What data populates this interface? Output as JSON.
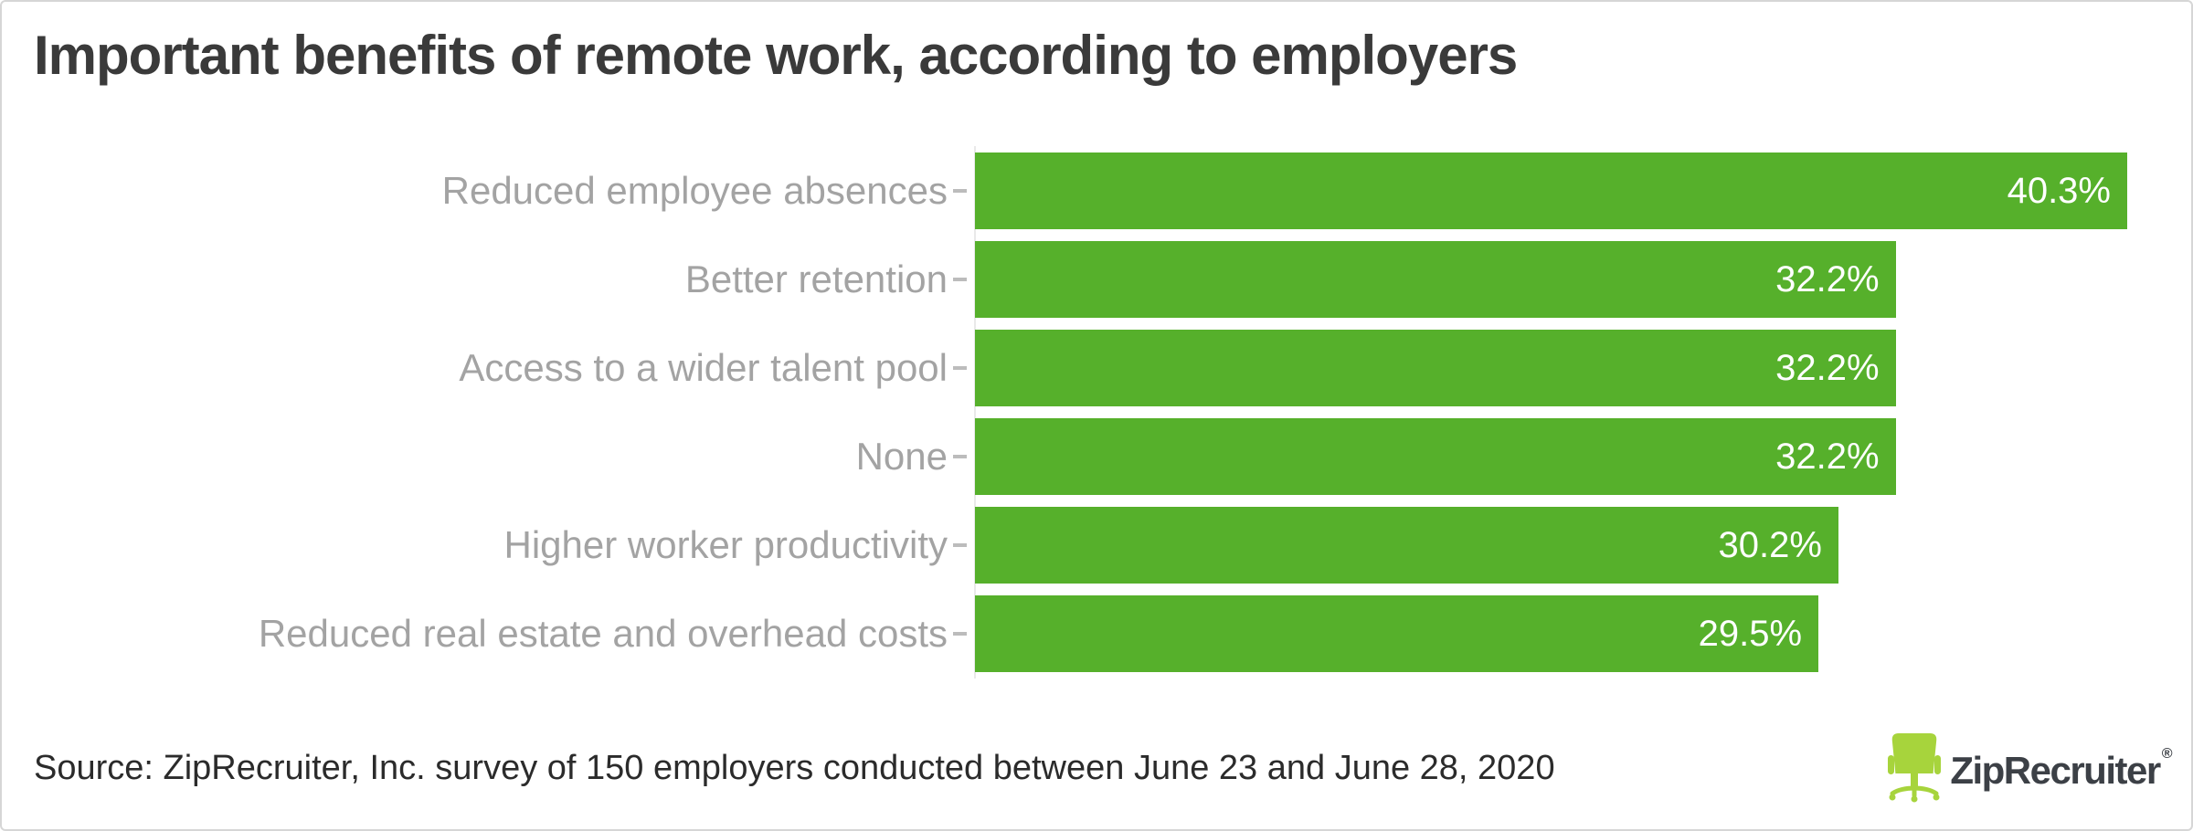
{
  "title": "Important benefits of remote work, according to employers",
  "chart_data": {
    "type": "bar",
    "orientation": "horizontal",
    "title": "Important benefits of remote work, according to employers",
    "categories": [
      "Reduced employee absences",
      "Better retention",
      "Access to a wider talent pool",
      "None",
      "Higher worker productivity",
      "Reduced real estate and overhead costs"
    ],
    "values": [
      40.3,
      32.2,
      32.2,
      32.2,
      30.2,
      29.5
    ],
    "value_labels": [
      "40.3%",
      "32.2%",
      "32.2%",
      "32.2%",
      "30.2%",
      "29.5%"
    ],
    "xlabel": "",
    "ylabel": "",
    "xmax": 40.3,
    "grid": false,
    "legend": false,
    "value_label_position": "inside-end",
    "bar_color": "#56b02b",
    "category_label_color": "#a3a3a3",
    "value_label_color": "#ffffff",
    "axis_line_color": "#e9e9e9",
    "tick_color": "#bcbcbc"
  },
  "footer": {
    "source_text": "Source: ZipRecruiter, Inc. survey of 150 employers conducted between June 23 and June 28, 2020",
    "logo": {
      "wordmark": "ZipRecruiter",
      "registered": "®",
      "icon": "office-chair-icon",
      "icon_color": "#a7d43c",
      "wordmark_color": "#3c4046"
    }
  },
  "colors": {
    "background": "#ffffff",
    "frame_border": "#d6d6d6",
    "title_text": "#3a3a3a",
    "source_text": "#2b2b2b"
  }
}
